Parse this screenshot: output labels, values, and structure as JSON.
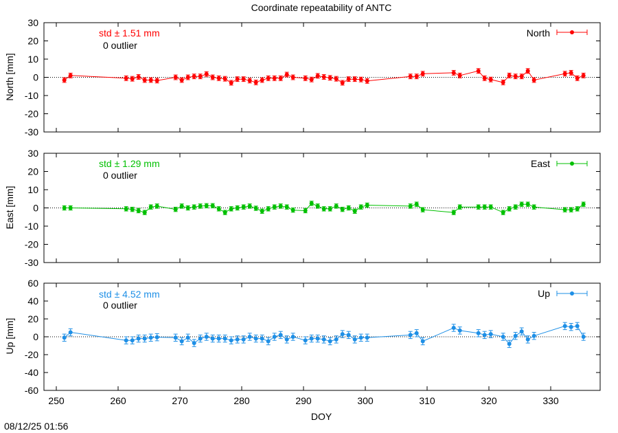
{
  "timestamp": "08/12/25 01:56",
  "chart_data": {
    "type": "scatter",
    "title": "Coordinate repeatability of ANTC",
    "xlabel": "DOY",
    "xlim": [
      248,
      338
    ],
    "xticks": [
      250,
      260,
      270,
      280,
      290,
      300,
      310,
      320,
      330
    ],
    "panels": [
      {
        "name": "North",
        "ylabel": "North [mm]",
        "ylim": [
          -30,
          30
        ],
        "yticks": [
          -30,
          -20,
          -10,
          0,
          10,
          20,
          30
        ],
        "color": "#ff0000",
        "std_text": "std ± 1.51 mm",
        "outlier_text": "0 outlier",
        "x": [
          251.3,
          252.3,
          261.3,
          262.3,
          263.3,
          264.3,
          265.3,
          266.3,
          269.3,
          270.3,
          271.3,
          272.3,
          273.3,
          274.3,
          275.3,
          276.3,
          277.3,
          278.3,
          279.3,
          280.3,
          281.3,
          282.3,
          283.3,
          284.3,
          285.3,
          286.3,
          287.3,
          288.3,
          290.3,
          291.3,
          292.3,
          293.3,
          294.3,
          295.3,
          296.3,
          297.3,
          298.3,
          299.3,
          300.3,
          307.3,
          308.3,
          309.3,
          314.3,
          315.3,
          318.3,
          319.3,
          320.3,
          322.3,
          323.3,
          324.3,
          325.3,
          326.3,
          327.3,
          332.3,
          333.3,
          334.3,
          335.3
        ],
        "y": [
          -1.5,
          1,
          -0.5,
          -0.8,
          0.2,
          -1.5,
          -1.5,
          -1.8,
          0,
          -1.5,
          0,
          0.5,
          0.5,
          1.8,
          0,
          -0.5,
          -0.8,
          -3,
          -1,
          -1,
          -1.8,
          -2.8,
          -1.5,
          -0.5,
          -0.5,
          -0.5,
          1.5,
          0,
          -0.5,
          -1.2,
          0.8,
          0.2,
          -0.3,
          -0.8,
          -3,
          -1,
          -1,
          -1.2,
          -2,
          0.5,
          0.5,
          2,
          2.5,
          1,
          3.5,
          -0.5,
          -1.2,
          -2.8,
          1,
          0.5,
          0.5,
          3.5,
          -1.5,
          2,
          2.5,
          -0.5,
          1
        ],
        "err": [
          1.3,
          1.3,
          1.3,
          1.3,
          1.3,
          1.3,
          1.3,
          1.3,
          1.3,
          1.3,
          1.3,
          1.3,
          1.3,
          1.3,
          1.3,
          1.3,
          1.3,
          1.3,
          1.3,
          1.3,
          1.3,
          1.3,
          1.3,
          1.3,
          1.3,
          1.3,
          1.3,
          1.3,
          1.3,
          1.3,
          1.3,
          1.3,
          1.3,
          1.3,
          1.3,
          1.3,
          1.3,
          1.3,
          1.3,
          1.3,
          1.3,
          1.3,
          1.3,
          1.3,
          1.3,
          1.3,
          1.3,
          1.3,
          1.3,
          1.3,
          1.3,
          1.3,
          1.3,
          1.3,
          1.3,
          1.3,
          1.3
        ]
      },
      {
        "name": "East",
        "ylabel": "East [mm]",
        "ylim": [
          -30,
          30
        ],
        "yticks": [
          -30,
          -20,
          -10,
          0,
          10,
          20,
          30
        ],
        "color": "#00c000",
        "std_text": "std ± 1.29 mm",
        "outlier_text": "0 outlier",
        "x": [
          251.3,
          252.3,
          261.3,
          262.3,
          263.3,
          264.3,
          265.3,
          266.3,
          269.3,
          270.3,
          271.3,
          272.3,
          273.3,
          274.3,
          275.3,
          276.3,
          277.3,
          278.3,
          279.3,
          280.3,
          281.3,
          282.3,
          283.3,
          284.3,
          285.3,
          286.3,
          287.3,
          288.3,
          290.3,
          291.3,
          292.3,
          293.3,
          294.3,
          295.3,
          296.3,
          297.3,
          298.3,
          299.3,
          300.3,
          307.3,
          308.3,
          309.3,
          314.3,
          315.3,
          318.3,
          319.3,
          320.3,
          322.3,
          323.3,
          324.3,
          325.3,
          326.3,
          327.3,
          332.3,
          333.3,
          334.3,
          335.3
        ],
        "y": [
          0,
          0,
          -0.5,
          -0.8,
          -1.5,
          -2.5,
          0.5,
          1,
          -0.8,
          1,
          0,
          0.5,
          1,
          1.2,
          1.2,
          -0.5,
          -2.5,
          -0.5,
          0,
          0.5,
          1,
          -0.2,
          -1.8,
          -0.5,
          0.5,
          1,
          0.5,
          -1.2,
          -1.5,
          2.5,
          1,
          -0.5,
          -0.5,
          1,
          -0.8,
          0,
          -1.8,
          0.5,
          1.5,
          1,
          2,
          -1,
          -2.5,
          0.5,
          0.5,
          0.5,
          0.5,
          -2.5,
          -0.5,
          0.5,
          2,
          2,
          0.5,
          -1,
          -1,
          -0.5,
          2
        ],
        "err": [
          1.2,
          1.2,
          1.2,
          1.2,
          1.2,
          1.2,
          1.2,
          1.2,
          1.2,
          1.2,
          1.2,
          1.2,
          1.2,
          1.2,
          1.2,
          1.2,
          1.2,
          1.2,
          1.2,
          1.2,
          1.2,
          1.2,
          1.2,
          1.2,
          1.2,
          1.2,
          1.2,
          1.2,
          1.2,
          1.2,
          1.2,
          1.2,
          1.2,
          1.2,
          1.2,
          1.2,
          1.2,
          1.2,
          1.2,
          1.2,
          1.2,
          1.2,
          1.2,
          1.2,
          1.2,
          1.2,
          1.2,
          1.2,
          1.2,
          1.2,
          1.2,
          1.2,
          1.2,
          1.2,
          1.2,
          1.2,
          1.2
        ]
      },
      {
        "name": "Up",
        "ylabel": "Up [mm]",
        "ylim": [
          -60,
          60
        ],
        "yticks": [
          -60,
          -40,
          -20,
          0,
          20,
          40,
          60
        ],
        "color": "#1e8fe6",
        "std_text": "std ± 4.52 mm",
        "outlier_text": "0 outlier",
        "x": [
          251.3,
          252.3,
          261.3,
          262.3,
          263.3,
          264.3,
          265.3,
          266.3,
          269.3,
          270.3,
          271.3,
          272.3,
          273.3,
          274.3,
          275.3,
          276.3,
          277.3,
          278.3,
          279.3,
          280.3,
          281.3,
          282.3,
          283.3,
          284.3,
          285.3,
          286.3,
          287.3,
          288.3,
          290.3,
          291.3,
          292.3,
          293.3,
          294.3,
          295.3,
          296.3,
          297.3,
          298.3,
          299.3,
          300.3,
          307.3,
          308.3,
          309.3,
          314.3,
          315.3,
          318.3,
          319.3,
          320.3,
          322.3,
          323.3,
          324.3,
          325.3,
          326.3,
          327.3,
          332.3,
          333.3,
          334.3,
          335.3
        ],
        "y": [
          -1,
          5,
          -4,
          -4,
          -2,
          -2,
          -1,
          -0.5,
          -1,
          -5,
          -1,
          -7,
          -2,
          0,
          -2,
          -2,
          -2,
          -4,
          -3,
          -3,
          0,
          -2,
          -2,
          -5,
          0,
          2,
          -3,
          0,
          -4,
          -2,
          -2,
          -3,
          -5,
          -3,
          3,
          2,
          -3,
          -1,
          -1,
          2,
          4,
          -5,
          10,
          7,
          4,
          2,
          3,
          0,
          -8,
          1,
          6,
          -3,
          1,
          12,
          11,
          12,
          0
        ],
        "err": [
          4,
          4,
          4,
          4,
          4,
          4,
          4,
          4,
          4,
          4,
          4,
          4,
          4,
          4,
          4,
          4,
          4,
          4,
          4,
          4,
          4,
          4,
          4,
          4,
          4,
          4,
          4,
          4,
          4,
          4,
          4,
          4,
          4,
          4,
          4,
          4,
          4,
          4,
          4,
          4,
          4,
          4,
          4,
          4,
          4,
          4,
          4,
          4,
          4,
          4,
          4,
          4,
          4,
          4,
          4,
          4,
          4
        ]
      }
    ]
  }
}
